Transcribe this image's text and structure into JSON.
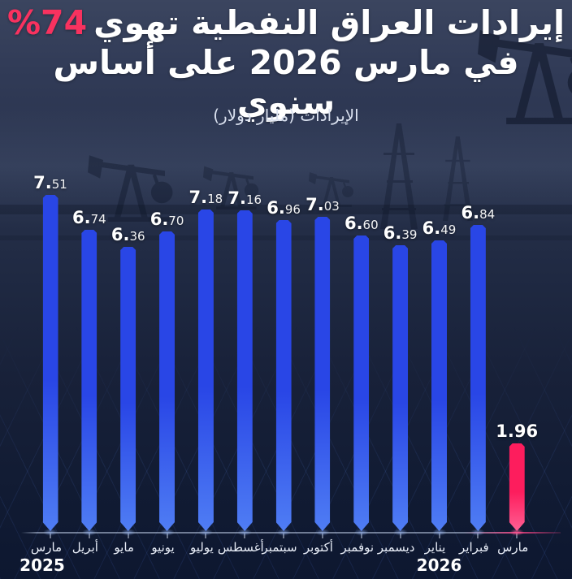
{
  "title": {
    "line1_main": "إيرادات العراق النفطية تهوي",
    "line1_accent": "%74",
    "line2": "في مارس 2026 على أساس سنوي",
    "accent_color": "#f8325f"
  },
  "subtitle": "الإيرادات (مليار دولار)",
  "chart_data": {
    "type": "bar",
    "ylabel": "الإيرادات (مليار دولار)",
    "categories": [
      "مارس",
      "أبريل",
      "مايو",
      "يونيو",
      "يوليو",
      "أغسطس",
      "سبتمبر",
      "أكتوبر",
      "نوفمبر",
      "ديسمبر",
      "يناير",
      "فبراير",
      "مارس"
    ],
    "values": [
      7.51,
      6.74,
      6.36,
      6.7,
      7.18,
      7.16,
      6.96,
      7.03,
      6.6,
      6.39,
      6.49,
      6.84,
      1.96
    ],
    "value_labels": [
      "7.51",
      "6.74",
      "6.36",
      "6.70",
      "7.18",
      "7.16",
      "6.96",
      "7.03",
      "6.60",
      "6.39",
      "6.49",
      "6.84",
      "1.96"
    ],
    "highlight_index": 12,
    "year_markers": [
      {
        "label": "2025",
        "bar_index": 0
      },
      {
        "label": "2026",
        "bar_index": 10
      }
    ],
    "bar_color": "#2946e6",
    "bar_tip_color": "#4f7df4",
    "highlight_color": "#fd1d5d",
    "highlight_tip_color": "#ff5f93",
    "ylim": [
      0,
      8
    ],
    "grid": false,
    "legend": false
  }
}
